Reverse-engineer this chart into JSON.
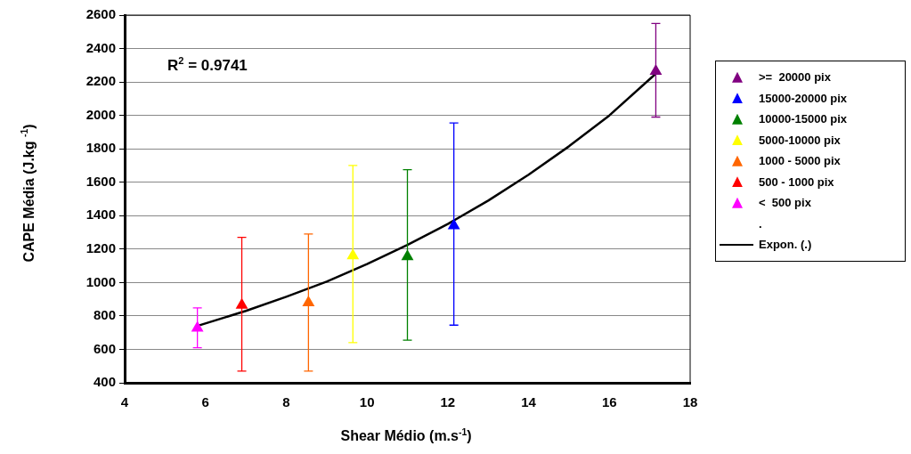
{
  "chart_data": {
    "type": "scatter",
    "xlabel": "Shear Médio (m.s$^{-1}$)",
    "ylabel": "CAPE Média (J.kg $^{-1}$)",
    "xlim": [
      4,
      18
    ],
    "xticks": [
      4,
      6,
      8,
      10,
      12,
      14,
      16,
      18
    ],
    "ylim": [
      400,
      2600
    ],
    "yticks": [
      400,
      600,
      800,
      1000,
      1200,
      1400,
      1600,
      1800,
      2000,
      2200,
      2400,
      2600
    ],
    "grid": "y",
    "legend": "right",
    "marker": "triangle",
    "annotations": [
      "R$^{2}$ = 0.9741"
    ],
    "series": [
      {
        "name": ">=  20000 pix",
        "color": "#800080",
        "x": [
          17.15
        ],
        "values": [
          2265
        ],
        "errors": [
          [
            1990,
            2550
          ]
        ]
      },
      {
        "name": "15000-20000 pix",
        "color": "#0000ff",
        "x": [
          12.15
        ],
        "values": [
          1340
        ],
        "errors": [
          [
            745,
            1955
          ]
        ]
      },
      {
        "name": "10000-15000 pix",
        "color": "#008000",
        "x": [
          11.0
        ],
        "values": [
          1155
        ],
        "errors": [
          [
            655,
            1675
          ]
        ]
      },
      {
        "name": "5000-10000 pix",
        "color": "#ffff00",
        "x": [
          9.65
        ],
        "values": [
          1160
        ],
        "errors": [
          [
            640,
            1700
          ]
        ]
      },
      {
        "name": "1000 - 5000 pix",
        "color": "#ff6600",
        "x": [
          8.55
        ],
        "values": [
          880
        ],
        "errors": [
          [
            470,
            1290
          ]
        ]
      },
      {
        "name": "500 - 1000 pix",
        "color": "#ff0000",
        "x": [
          6.9
        ],
        "values": [
          865
        ],
        "errors": [
          [
            470,
            1270
          ]
        ]
      },
      {
        "name": "<  500 pix",
        "color": "#ff00ff",
        "x": [
          5.8
        ],
        "values": [
          727
        ],
        "errors": [
          [
            610,
            848
          ]
        ]
      },
      {
        "name": ".",
        "marker": "none"
      },
      {
        "name": "Expon. (.)",
        "type": "line",
        "color": "#000000",
        "marker": "none",
        "line_style": "solid",
        "x": [
          5.8,
          7,
          8,
          9,
          10,
          11,
          12,
          13,
          14,
          15,
          16,
          17.15
        ],
        "values": [
          740,
          830,
          915,
          1005,
          1110,
          1225,
          1350,
          1490,
          1645,
          1815,
          2000,
          2250
        ]
      }
    ]
  }
}
